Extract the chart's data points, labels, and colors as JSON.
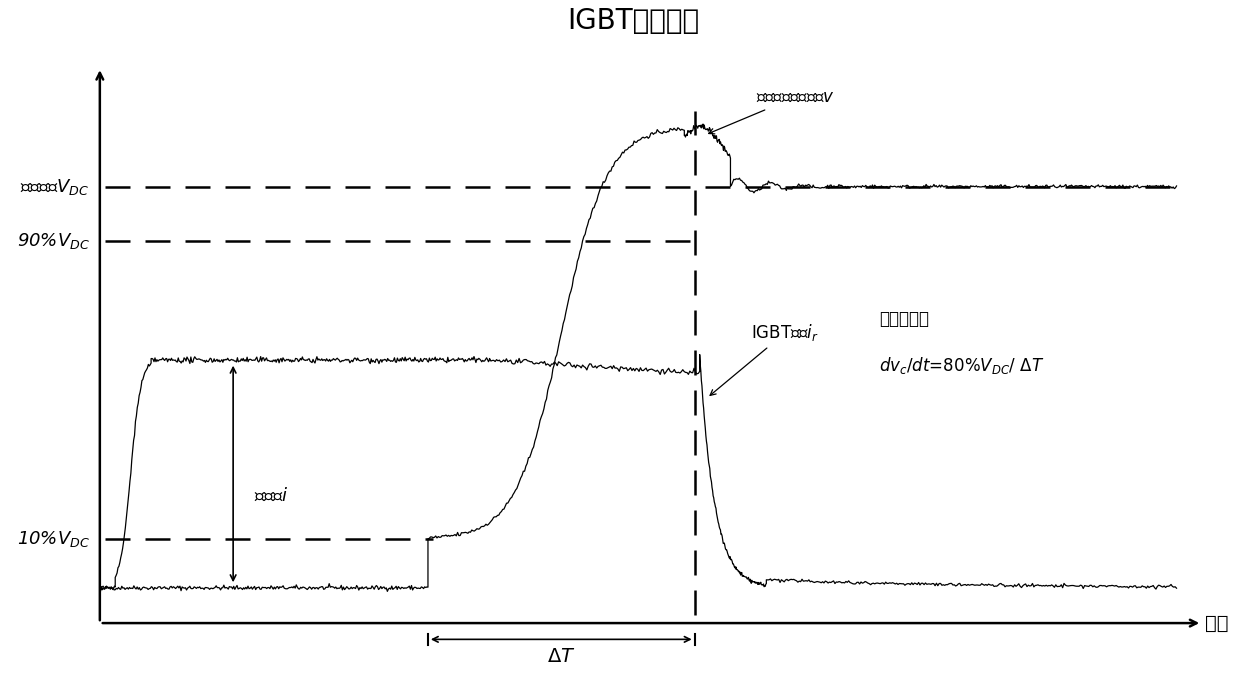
{
  "title": "IGBT关断过程",
  "title_fontsize": 20,
  "background_color": "#ffffff",
  "text_color": "#000000",
  "label_vdc": "直流电压$V_{DC}$",
  "label_90vdc": "90%$V_{DC}$",
  "label_10vdc": "10%$V_{DC}$",
  "label_phase_current": "相电流$i$",
  "label_igbt_current": "IGBT电流$i_r$",
  "label_freq_voltage": "变频器输出相电压$v$",
  "label_dv_line1": "电压变化率",
  "label_dv_line2": "$dv_c/dt$=80%$V_{DC}$/ $\\Delta T$",
  "label_delta_t": "$\\Delta T$",
  "label_time": "时间",
  "vdc_level": 0.78,
  "v90_level": 0.68,
  "v10_level": 0.13,
  "current_flat_level": 0.46,
  "current_low_level": 0.04
}
